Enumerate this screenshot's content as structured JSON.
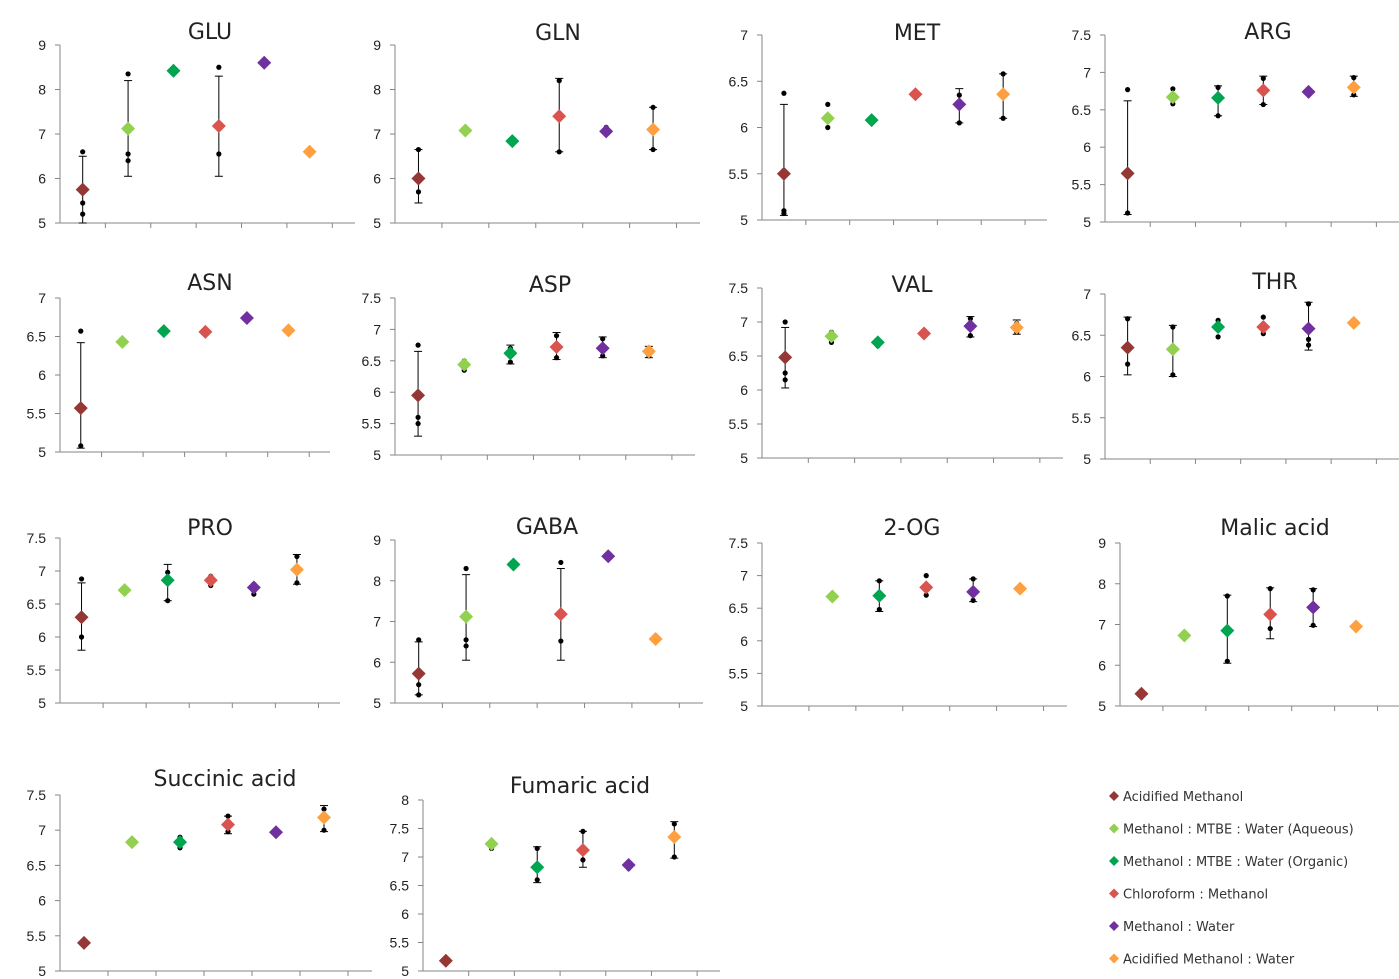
{
  "series_legend": [
    {
      "name": "Acidified Methanol",
      "color": "#953735"
    },
    {
      "name": "Methanol : MTBE : Water (Aqueous)",
      "color": "#92d050"
    },
    {
      "name": "Methanol : MTBE : Water (Organic)",
      "color": "#00a550"
    },
    {
      "name": "Chloroform : Methanol",
      "color": "#d9534f"
    },
    {
      "name": "Methanol : Water",
      "color": "#7030a0"
    },
    {
      "name": "Acidified Methanol : Water",
      "color": "#ffa040"
    }
  ],
  "chart_data": [
    {
      "type": "scatter",
      "title": "GLU",
      "yticks": [
        "9",
        "8",
        "7",
        "6",
        "5"
      ],
      "ylim": [
        5,
        9
      ],
      "points": [
        {
          "series": 0,
          "value": 5.75,
          "err": [
            5,
            6.5
          ],
          "reps": [
            6.6,
            5.45,
            5.2
          ]
        },
        {
          "series": 1,
          "value": 7.12,
          "err": [
            6.05,
            8.2
          ],
          "reps": [
            8.35,
            6.55,
            6.4
          ]
        },
        {
          "series": 2,
          "value": 8.42,
          "err": null,
          "reps": [
            8.42
          ]
        },
        {
          "series": 3,
          "value": 7.18,
          "err": [
            6.05,
            8.3
          ],
          "reps": [
            8.5,
            6.55
          ]
        },
        {
          "series": 4,
          "value": 8.6,
          "err": null,
          "reps": [
            8.6
          ]
        },
        {
          "series": 5,
          "value": 6.6,
          "err": null,
          "reps": [
            6.65
          ]
        }
      ]
    },
    {
      "type": "scatter",
      "title": "GLN",
      "yticks": [
        "9",
        "8",
        "7",
        "6",
        "5"
      ],
      "ylim": [
        5,
        9
      ],
      "points": [
        {
          "series": 0,
          "value": 6.0,
          "err": [
            5.45,
            6.65
          ],
          "reps": [
            6.65,
            5.7
          ]
        },
        {
          "series": 1,
          "value": 7.08,
          "err": null,
          "reps": [
            7.05
          ]
        },
        {
          "series": 2,
          "value": 6.84,
          "err": null,
          "reps": [
            6.8
          ]
        },
        {
          "series": 3,
          "value": 7.4,
          "err": [
            6.6,
            8.25
          ],
          "reps": [
            8.2,
            6.6
          ]
        },
        {
          "series": 4,
          "value": 7.06,
          "err": null,
          "reps": [
            7.15,
            7.0
          ]
        },
        {
          "series": 5,
          "value": 7.1,
          "err": [
            6.65,
            7.6
          ],
          "reps": [
            7.6,
            6.65
          ]
        }
      ]
    },
    {
      "type": "scatter",
      "title": "MET",
      "yticks": [
        "7",
        "6.5",
        "6",
        "5.5",
        "5"
      ],
      "ylim": [
        5,
        7
      ],
      "points": [
        {
          "series": 0,
          "value": 5.5,
          "err": [
            5.05,
            6.25
          ],
          "reps": [
            6.37,
            5.1,
            5.07
          ]
        },
        {
          "series": 1,
          "value": 6.1,
          "err": null,
          "reps": [
            6.25,
            6.0
          ]
        },
        {
          "series": 2,
          "value": 6.08,
          "err": null,
          "reps": [
            6.05
          ]
        },
        {
          "series": 3,
          "value": 6.36,
          "err": null,
          "reps": [
            6.35
          ]
        },
        {
          "series": 4,
          "value": 6.25,
          "err": [
            6.05,
            6.42
          ],
          "reps": [
            6.35,
            6.05
          ]
        },
        {
          "series": 5,
          "value": 6.36,
          "err": [
            6.1,
            6.58
          ],
          "reps": [
            6.58,
            6.1
          ]
        }
      ]
    },
    {
      "type": "scatter",
      "title": "ARG",
      "yticks": [
        "7.5",
        "7",
        "6.5",
        "6",
        "5.5",
        "5"
      ],
      "ylim": [
        5,
        7.5
      ],
      "points": [
        {
          "series": 0,
          "value": 5.65,
          "err": [
            5.1,
            6.62
          ],
          "reps": [
            6.77,
            5.12
          ]
        },
        {
          "series": 1,
          "value": 6.67,
          "err": null,
          "reps": [
            6.78,
            6.58
          ]
        },
        {
          "series": 2,
          "value": 6.66,
          "err": [
            6.42,
            6.82
          ],
          "reps": [
            6.8,
            6.42
          ]
        },
        {
          "series": 3,
          "value": 6.76,
          "err": [
            6.57,
            6.95
          ],
          "reps": [
            6.92,
            6.57
          ]
        },
        {
          "series": 4,
          "value": 6.74,
          "err": null,
          "reps": [
            6.78,
            6.7
          ]
        },
        {
          "series": 5,
          "value": 6.8,
          "err": [
            6.68,
            6.95
          ],
          "reps": [
            6.93,
            6.7
          ]
        }
      ]
    },
    {
      "type": "scatter",
      "title": "ASN",
      "yticks": [
        "7",
        "6.5",
        "6",
        "5.5",
        "5"
      ],
      "ylim": [
        5,
        7
      ],
      "points": [
        {
          "series": 0,
          "value": 5.57,
          "err": [
            5.05,
            6.42
          ],
          "reps": [
            6.57,
            5.08
          ]
        },
        {
          "series": 1,
          "value": 6.43,
          "err": null,
          "reps": [
            6.45
          ]
        },
        {
          "series": 2,
          "value": 6.57,
          "err": null,
          "reps": [
            6.57
          ]
        },
        {
          "series": 3,
          "value": 6.56,
          "err": null,
          "reps": [
            6.56
          ]
        },
        {
          "series": 4,
          "value": 6.74,
          "err": null,
          "reps": [
            6.74
          ]
        },
        {
          "series": 5,
          "value": 6.58,
          "err": null,
          "reps": [
            6.6
          ]
        }
      ]
    },
    {
      "type": "scatter",
      "title": "ASP",
      "yticks": [
        "7.5",
        "7",
        "6.5",
        "6",
        "5.5",
        "5"
      ],
      "ylim": [
        5,
        7.5
      ],
      "points": [
        {
          "series": 0,
          "value": 5.95,
          "err": [
            5.3,
            6.65
          ],
          "reps": [
            6.75,
            5.6,
            5.5
          ]
        },
        {
          "series": 1,
          "value": 6.44,
          "err": null,
          "reps": [
            6.5,
            6.35
          ]
        },
        {
          "series": 2,
          "value": 6.62,
          "err": [
            6.45,
            6.75
          ],
          "reps": [
            6.7,
            6.48
          ]
        },
        {
          "series": 3,
          "value": 6.72,
          "err": [
            6.52,
            6.95
          ],
          "reps": [
            6.9,
            6.55
          ]
        },
        {
          "series": 4,
          "value": 6.7,
          "err": [
            6.55,
            6.88
          ],
          "reps": [
            6.85,
            6.58
          ]
        },
        {
          "series": 5,
          "value": 6.65,
          "err": [
            6.55,
            6.73
          ],
          "reps": [
            6.7,
            6.58
          ]
        }
      ]
    },
    {
      "type": "scatter",
      "title": "VAL",
      "yticks": [
        "7.5",
        "7",
        "6.5",
        "6",
        "5.5",
        "5"
      ],
      "ylim": [
        5,
        7.5
      ],
      "points": [
        {
          "series": 0,
          "value": 6.48,
          "err": [
            6.03,
            6.92
          ],
          "reps": [
            7.0,
            6.25,
            6.15
          ]
        },
        {
          "series": 1,
          "value": 6.79,
          "err": null,
          "reps": [
            6.85,
            6.7
          ]
        },
        {
          "series": 2,
          "value": 6.7,
          "err": null,
          "reps": [
            6.65
          ]
        },
        {
          "series": 3,
          "value": 6.83,
          "err": null,
          "reps": [
            6.83
          ]
        },
        {
          "series": 4,
          "value": 6.94,
          "err": [
            6.78,
            7.08
          ],
          "reps": [
            7.05,
            6.8
          ]
        },
        {
          "series": 5,
          "value": 6.92,
          "err": [
            6.82,
            7.03
          ],
          "reps": [
            6.98,
            6.85
          ]
        }
      ]
    },
    {
      "type": "scatter",
      "title": "THR",
      "yticks": [
        "7",
        "6.5",
        "6",
        "5.5",
        "5"
      ],
      "ylim": [
        5,
        7
      ],
      "points": [
        {
          "series": 0,
          "value": 6.35,
          "err": [
            6.02,
            6.72
          ],
          "reps": [
            6.7,
            6.15
          ]
        },
        {
          "series": 1,
          "value": 6.33,
          "err": [
            6.0,
            6.62
          ],
          "reps": [
            6.6,
            6.02
          ]
        },
        {
          "series": 2,
          "value": 6.6,
          "err": null,
          "reps": [
            6.68,
            6.48
          ]
        },
        {
          "series": 3,
          "value": 6.6,
          "err": null,
          "reps": [
            6.72,
            6.52
          ]
        },
        {
          "series": 4,
          "value": 6.58,
          "err": [
            6.32,
            6.9
          ],
          "reps": [
            6.88,
            6.45,
            6.38
          ]
        },
        {
          "series": 5,
          "value": 6.65,
          "err": null,
          "reps": []
        }
      ]
    },
    {
      "type": "scatter",
      "title": "PRO",
      "yticks": [
        "7.5",
        "7",
        "6.5",
        "6",
        "5.5",
        "5"
      ],
      "ylim": [
        5,
        7.5
      ],
      "points": [
        {
          "series": 0,
          "value": 6.3,
          "err": [
            5.8,
            6.82
          ],
          "reps": [
            6.88,
            6.0
          ]
        },
        {
          "series": 1,
          "value": 6.71,
          "err": null,
          "reps": [
            6.7
          ]
        },
        {
          "series": 2,
          "value": 6.86,
          "err": [
            6.55,
            7.1
          ],
          "reps": [
            6.98,
            6.55
          ]
        },
        {
          "series": 3,
          "value": 6.86,
          "err": null,
          "reps": [
            6.92,
            6.78
          ]
        },
        {
          "series": 4,
          "value": 6.75,
          "err": null,
          "reps": [
            6.8,
            6.65
          ]
        },
        {
          "series": 5,
          "value": 7.02,
          "err": [
            6.8,
            7.25
          ],
          "reps": [
            7.22,
            6.82
          ]
        }
      ]
    },
    {
      "type": "scatter",
      "title": "GABA",
      "yticks": [
        "9",
        "8",
        "7",
        "6",
        "5"
      ],
      "ylim": [
        5,
        9
      ],
      "points": [
        {
          "series": 0,
          "value": 5.72,
          "err": [
            5.2,
            6.5
          ],
          "reps": [
            6.55,
            5.45,
            5.2
          ]
        },
        {
          "series": 1,
          "value": 7.12,
          "err": [
            6.05,
            8.15
          ],
          "reps": [
            8.3,
            6.55,
            6.4
          ]
        },
        {
          "series": 2,
          "value": 8.4,
          "err": null,
          "reps": [
            8.4
          ]
        },
        {
          "series": 3,
          "value": 7.18,
          "err": [
            6.05,
            8.3
          ],
          "reps": [
            8.45,
            6.52
          ]
        },
        {
          "series": 4,
          "value": 8.6,
          "err": null,
          "reps": [
            8.6
          ]
        },
        {
          "series": 5,
          "value": 6.57,
          "err": null,
          "reps": [
            6.65
          ]
        }
      ]
    },
    {
      "type": "scatter",
      "title": "2-OG",
      "yticks": [
        "7.5",
        "7",
        "6.5",
        "6",
        "5.5",
        "5"
      ],
      "ylim": [
        5,
        7.5
      ],
      "points": [
        {
          "series": 1,
          "value": 6.68,
          "err": null,
          "reps": [
            6.68
          ]
        },
        {
          "series": 2,
          "value": 6.69,
          "err": [
            6.45,
            6.92
          ],
          "reps": [
            6.92,
            6.48
          ]
        },
        {
          "series": 3,
          "value": 6.82,
          "err": null,
          "reps": [
            7.0,
            6.7
          ]
        },
        {
          "series": 4,
          "value": 6.75,
          "err": [
            6.6,
            6.95
          ],
          "reps": [
            6.95,
            6.62
          ]
        },
        {
          "series": 5,
          "value": 6.8,
          "err": null,
          "reps": [
            6.82
          ]
        }
      ]
    },
    {
      "type": "scatter",
      "title": "Malic acid",
      "yticks": [
        "9",
        "8",
        "7",
        "6",
        "5"
      ],
      "ylim": [
        5,
        9
      ],
      "points": [
        {
          "series": 0,
          "value": 5.3,
          "err": null,
          "reps": [
            5.32
          ]
        },
        {
          "series": 1,
          "value": 6.73,
          "err": null,
          "reps": [
            6.8,
            6.68
          ]
        },
        {
          "series": 2,
          "value": 6.85,
          "err": [
            6.05,
            7.72
          ],
          "reps": [
            7.7,
            6.1
          ]
        },
        {
          "series": 3,
          "value": 7.25,
          "err": [
            6.65,
            7.9
          ],
          "reps": [
            7.88,
            6.9
          ]
        },
        {
          "series": 4,
          "value": 7.42,
          "err": [
            6.95,
            7.88
          ],
          "reps": [
            7.85,
            6.98
          ]
        },
        {
          "series": 5,
          "value": 6.95,
          "err": null,
          "reps": [
            6.95
          ]
        }
      ]
    },
    {
      "type": "scatter",
      "title": "Succinic acid",
      "yticks": [
        "7.5",
        "7",
        "6.5",
        "6",
        "5.5",
        "5"
      ],
      "ylim": [
        5,
        7.5
      ],
      "points": [
        {
          "series": 0,
          "value": 5.4,
          "err": null,
          "reps": [
            5.4
          ]
        },
        {
          "series": 1,
          "value": 6.83,
          "err": null,
          "reps": [
            6.82
          ]
        },
        {
          "series": 2,
          "value": 6.83,
          "err": null,
          "reps": [
            6.9,
            6.75
          ]
        },
        {
          "series": 3,
          "value": 7.08,
          "err": [
            6.95,
            7.2
          ],
          "reps": [
            7.2,
            6.98
          ]
        },
        {
          "series": 4,
          "value": 6.97,
          "err": null,
          "reps": [
            6.97
          ]
        },
        {
          "series": 5,
          "value": 7.18,
          "err": [
            6.98,
            7.35
          ],
          "reps": [
            7.3,
            7.0
          ]
        }
      ]
    },
    {
      "type": "scatter",
      "title": "Fumaric acid",
      "yticks": [
        "8",
        "7.5",
        "7",
        "6.5",
        "6",
        "5.5",
        "5"
      ],
      "ylim": [
        5,
        8
      ],
      "points": [
        {
          "series": 0,
          "value": 5.18,
          "err": null,
          "reps": [
            5.18
          ]
        },
        {
          "series": 1,
          "value": 7.23,
          "err": null,
          "reps": [
            7.28,
            7.15
          ]
        },
        {
          "series": 2,
          "value": 6.82,
          "err": [
            6.55,
            7.18
          ],
          "reps": [
            7.15,
            6.6
          ]
        },
        {
          "series": 3,
          "value": 7.12,
          "err": [
            6.82,
            7.45
          ],
          "reps": [
            7.45,
            6.95
          ]
        },
        {
          "series": 4,
          "value": 6.86,
          "err": null,
          "reps": [
            6.88,
            6.8
          ]
        },
        {
          "series": 5,
          "value": 7.35,
          "err": [
            6.98,
            7.62
          ],
          "reps": [
            7.58,
            7.0
          ]
        }
      ]
    }
  ]
}
